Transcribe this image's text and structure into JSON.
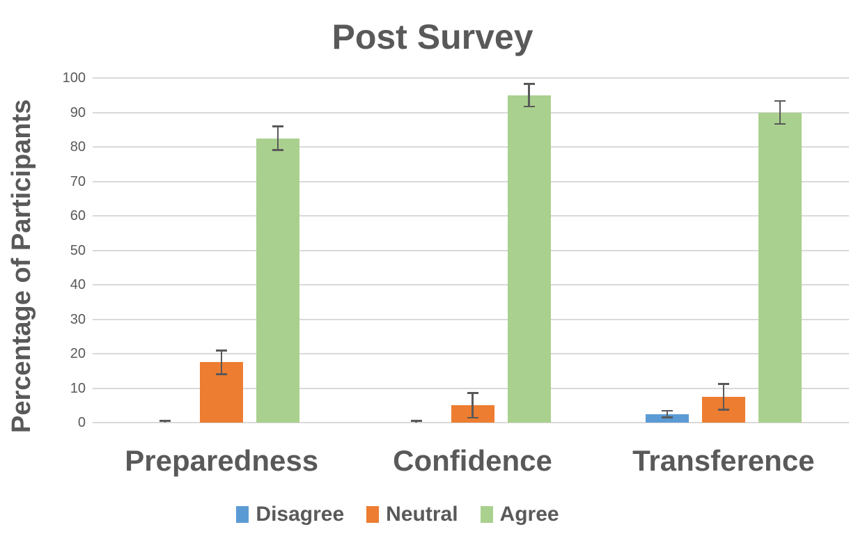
{
  "chart_data": {
    "type": "bar",
    "title": "Post Survey",
    "subtitle": "",
    "xlabel": "",
    "ylabel": "Percentage of Participants",
    "categories": [
      "Preparedness",
      "Confidence",
      "Transference"
    ],
    "series": [
      {
        "name": "Disagree",
        "color": "#5B9BD5",
        "values": [
          0,
          0,
          2.5
        ],
        "errors": [
          0.8,
          0.8,
          1.2
        ]
      },
      {
        "name": "Neutral",
        "color": "#ED7D31",
        "values": [
          17.5,
          5,
          7.5
        ],
        "errors": [
          3.7,
          3.8,
          4.0
        ]
      },
      {
        "name": "Agree",
        "color": "#A9D08E",
        "values": [
          82.5,
          95,
          90
        ],
        "errors": [
          3.7,
          3.5,
          3.6
        ]
      }
    ],
    "ylim": [
      0,
      100
    ],
    "yticks": [
      0,
      10,
      20,
      30,
      40,
      50,
      60,
      70,
      80,
      90,
      100
    ],
    "grid": true,
    "error_bars": true,
    "legend_position": "bottom"
  },
  "colors": {
    "text": "#595959",
    "gridline": "#D9D9D9",
    "error_bar": "#595959",
    "background": "#FFFFFF"
  }
}
